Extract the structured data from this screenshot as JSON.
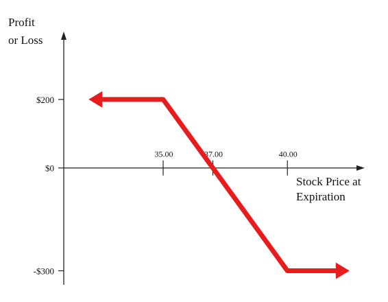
{
  "chart_data": {
    "type": "line",
    "ylabel_lines": [
      "Profit",
      "or Loss"
    ],
    "xlabel_lines": [
      "Stock Price at",
      "Expiration"
    ],
    "y_ticks": [
      {
        "value": 200,
        "label": "$200"
      },
      {
        "value": 0,
        "label": "$0"
      },
      {
        "value": -300,
        "label": "-$300"
      }
    ],
    "x_ticks": [
      {
        "value": 35,
        "label": "35.00"
      },
      {
        "value": 37,
        "label": "37.00"
      },
      {
        "value": 40,
        "label": "40.00"
      }
    ],
    "series": [
      {
        "x": [
          32,
          35,
          40,
          42.5
        ],
        "y": [
          200,
          200,
          -300,
          -300
        ],
        "arrow_left": true,
        "arrow_right": true
      }
    ],
    "xlim": [
      31,
      43
    ],
    "ylim": [
      -335,
      390
    ],
    "line_color": "#e81c1c",
    "axis_color": "#222222",
    "grid": false
  }
}
